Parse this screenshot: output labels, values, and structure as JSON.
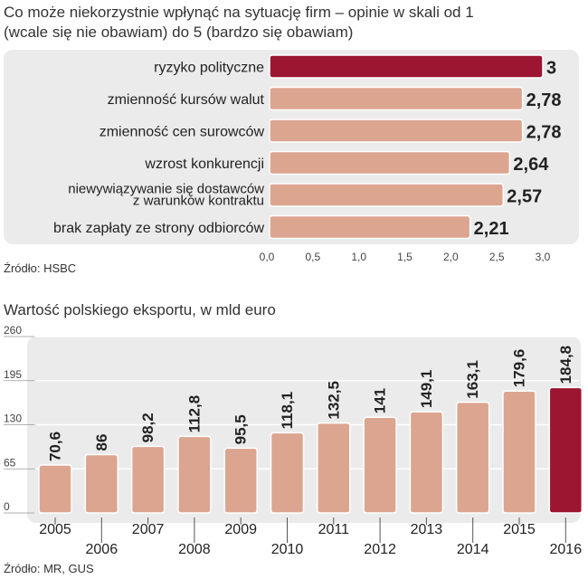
{
  "chart1": {
    "title_line1": "Co może niekorzystnie wpłynąć na sytuację firm – opinie w skali od 1",
    "title_line2": "(wcale się nie obawiam) do 5 (bardzo się obawiam)",
    "source": "Źródło: HSBC"
  },
  "chart2": {
    "title": "Wartość polskiego eksportu, w mld euro",
    "source": "Źródło: MR, GUS"
  },
  "colors": {
    "bar": "#dca590",
    "highlight": "#9c1531",
    "panel": "#ebebeb",
    "text": "#222222"
  },
  "chart_data": [
    {
      "type": "bar",
      "orientation": "horizontal",
      "title": "Co może niekorzystnie wpłynąć na sytuację firm – opinie w skali od 1 (wcale się nie obawiam) do 5 (bardzo się obawiam)",
      "categories": [
        "ryzyko polityczne",
        "zmienność kursów walut",
        "zmienność cen surowców",
        "wzrost konkurencji",
        "niewywiązywanie się dostawców z warunków kontraktu",
        "brak zapłaty ze strony odbiorców"
      ],
      "category_lines": [
        [
          "ryzyko polityczne"
        ],
        [
          "zmienność kursów walut"
        ],
        [
          "zmienność cen surowców"
        ],
        [
          "wzrost konkurencji"
        ],
        [
          "niewywiązywanie się dostawców",
          "z warunków kontraktu"
        ],
        [
          "brak zapłaty ze strony odbiorców"
        ]
      ],
      "values": [
        3,
        2.78,
        2.78,
        2.64,
        2.57,
        2.21
      ],
      "value_labels": [
        "3",
        "2,78",
        "2,78",
        "2,64",
        "2,57",
        "2,21"
      ],
      "highlight_index": 0,
      "xlim": [
        0,
        3
      ],
      "xticks": [
        0,
        0.5,
        1,
        1.5,
        2,
        2.5,
        3
      ],
      "xtick_labels": [
        "0,0",
        "0,5",
        "1,0",
        "1,5",
        "2,0",
        "2,5",
        "3,0"
      ],
      "grid": false
    },
    {
      "type": "bar",
      "orientation": "vertical",
      "title": "Wartość polskiego eksportu, w mld euro",
      "categories": [
        "2005",
        "2006",
        "2007",
        "2008",
        "2009",
        "2010",
        "2011",
        "2012",
        "2013",
        "2014",
        "2015",
        "2016"
      ],
      "values": [
        70.6,
        86,
        98.2,
        112.8,
        95.5,
        118.1,
        132.5,
        141,
        149.1,
        163.1,
        179.6,
        184.8
      ],
      "value_labels": [
        "70,6",
        "86",
        "98,2",
        "112,8",
        "95,5",
        "118,1",
        "132,5",
        "141",
        "149,1",
        "163,1",
        "179,6",
        "184,8"
      ],
      "highlight_index": 11,
      "ylim": [
        0,
        260
      ],
      "yticks": [
        0,
        65,
        130,
        195,
        260
      ],
      "grid": true
    }
  ]
}
